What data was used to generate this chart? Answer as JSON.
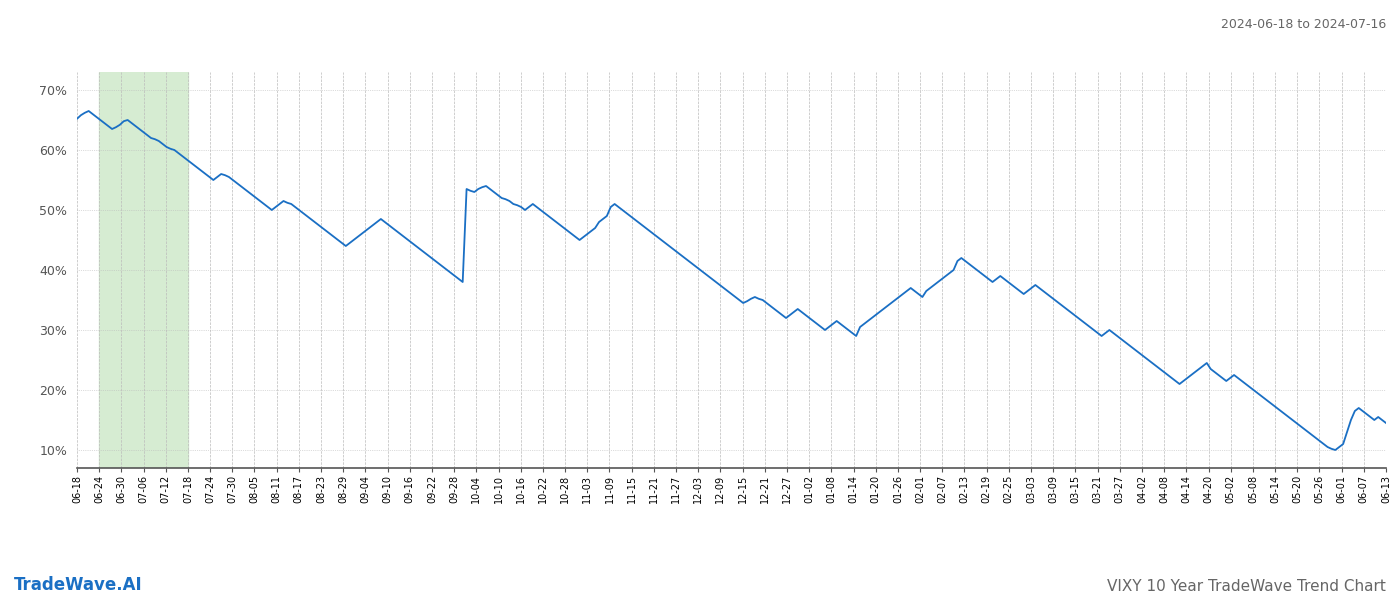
{
  "title_top_right": "2024-06-18 to 2024-07-16",
  "title_bottom_left": "TradeWave.AI",
  "title_bottom_right": "VIXY 10 Year TradeWave Trend Chart",
  "y_ticks": [
    10,
    20,
    30,
    40,
    50,
    60,
    70
  ],
  "y_min": 7,
  "y_max": 73,
  "line_color": "#1a6fc4",
  "line_width": 1.3,
  "background_color": "#ffffff",
  "grid_color": "#bbbbbb",
  "shade_color": "#d6ecd2",
  "x_labels": [
    "06-18",
    "06-24",
    "06-30",
    "07-06",
    "07-12",
    "07-18",
    "07-24",
    "07-30",
    "08-05",
    "08-11",
    "08-17",
    "08-23",
    "08-29",
    "09-04",
    "09-10",
    "09-16",
    "09-22",
    "09-28",
    "10-04",
    "10-10",
    "10-16",
    "10-22",
    "10-28",
    "11-03",
    "11-09",
    "11-15",
    "11-21",
    "11-27",
    "12-03",
    "12-09",
    "12-15",
    "12-21",
    "12-27",
    "01-02",
    "01-08",
    "01-14",
    "01-20",
    "01-26",
    "02-01",
    "02-07",
    "02-13",
    "02-19",
    "02-25",
    "03-03",
    "03-09",
    "03-15",
    "03-21",
    "03-27",
    "04-02",
    "04-08",
    "04-14",
    "04-20",
    "05-02",
    "05-08",
    "05-14",
    "05-20",
    "05-26",
    "06-01",
    "06-07",
    "06-13"
  ],
  "green_shade_label_start": "06-24",
  "green_shade_label_end": "07-18",
  "y_values": [
    65.2,
    65.8,
    66.2,
    66.5,
    66.0,
    65.5,
    65.0,
    64.5,
    64.0,
    63.5,
    63.8,
    64.2,
    64.8,
    65.0,
    64.5,
    64.0,
    63.5,
    63.0,
    62.5,
    62.0,
    61.8,
    61.5,
    61.0,
    60.5,
    60.2,
    60.0,
    59.5,
    59.0,
    58.5,
    58.0,
    57.5,
    57.0,
    56.5,
    56.0,
    55.5,
    55.0,
    55.5,
    56.0,
    55.8,
    55.5,
    55.0,
    54.5,
    54.0,
    53.5,
    53.0,
    52.5,
    52.0,
    51.5,
    51.0,
    50.5,
    50.0,
    50.5,
    51.0,
    51.5,
    51.2,
    51.0,
    50.5,
    50.0,
    49.5,
    49.0,
    48.5,
    48.0,
    47.5,
    47.0,
    46.5,
    46.0,
    45.5,
    45.0,
    44.5,
    44.0,
    44.5,
    45.0,
    45.5,
    46.0,
    46.5,
    47.0,
    47.5,
    48.0,
    48.5,
    48.0,
    47.5,
    47.0,
    46.5,
    46.0,
    45.5,
    45.0,
    44.5,
    44.0,
    43.5,
    43.0,
    42.5,
    42.0,
    41.5,
    41.0,
    40.5,
    40.0,
    39.5,
    39.0,
    38.5,
    38.0,
    53.5,
    53.2,
    53.0,
    53.5,
    53.8,
    54.0,
    53.5,
    53.0,
    52.5,
    52.0,
    51.8,
    51.5,
    51.0,
    50.8,
    50.5,
    50.0,
    50.5,
    51.0,
    50.5,
    50.0,
    49.5,
    49.0,
    48.5,
    48.0,
    47.5,
    47.0,
    46.5,
    46.0,
    45.5,
    45.0,
    45.5,
    46.0,
    46.5,
    47.0,
    48.0,
    48.5,
    49.0,
    50.5,
    51.0,
    50.5,
    50.0,
    49.5,
    49.0,
    48.5,
    48.0,
    47.5,
    47.0,
    46.5,
    46.0,
    45.5,
    45.0,
    44.5,
    44.0,
    43.5,
    43.0,
    42.5,
    42.0,
    41.5,
    41.0,
    40.5,
    40.0,
    39.5,
    39.0,
    38.5,
    38.0,
    37.5,
    37.0,
    36.5,
    36.0,
    35.5,
    35.0,
    34.5,
    34.8,
    35.2,
    35.5,
    35.2,
    35.0,
    34.5,
    34.0,
    33.5,
    33.0,
    32.5,
    32.0,
    32.5,
    33.0,
    33.5,
    33.0,
    32.5,
    32.0,
    31.5,
    31.0,
    30.5,
    30.0,
    30.5,
    31.0,
    31.5,
    31.0,
    30.5,
    30.0,
    29.5,
    29.0,
    30.5,
    31.0,
    31.5,
    32.0,
    32.5,
    33.0,
    33.5,
    34.0,
    34.5,
    35.0,
    35.5,
    36.0,
    36.5,
    37.0,
    36.5,
    36.0,
    35.5,
    36.5,
    37.0,
    37.5,
    38.0,
    38.5,
    39.0,
    39.5,
    40.0,
    41.5,
    42.0,
    41.5,
    41.0,
    40.5,
    40.0,
    39.5,
    39.0,
    38.5,
    38.0,
    38.5,
    39.0,
    38.5,
    38.0,
    37.5,
    37.0,
    36.5,
    36.0,
    36.5,
    37.0,
    37.5,
    37.0,
    36.5,
    36.0,
    35.5,
    35.0,
    34.5,
    34.0,
    33.5,
    33.0,
    32.5,
    32.0,
    31.5,
    31.0,
    30.5,
    30.0,
    29.5,
    29.0,
    29.5,
    30.0,
    29.5,
    29.0,
    28.5,
    28.0,
    27.5,
    27.0,
    26.5,
    26.0,
    25.5,
    25.0,
    24.5,
    24.0,
    23.5,
    23.0,
    22.5,
    22.0,
    21.5,
    21.0,
    21.5,
    22.0,
    22.5,
    23.0,
    23.5,
    24.0,
    24.5,
    23.5,
    23.0,
    22.5,
    22.0,
    21.5,
    22.0,
    22.5,
    22.0,
    21.5,
    21.0,
    20.5,
    20.0,
    19.5,
    19.0,
    18.5,
    18.0,
    17.5,
    17.0,
    16.5,
    16.0,
    15.5,
    15.0,
    14.5,
    14.0,
    13.5,
    13.0,
    12.5,
    12.0,
    11.5,
    11.0,
    10.5,
    10.2,
    10.0,
    10.5,
    11.0,
    13.0,
    15.0,
    16.5,
    17.0,
    16.5,
    16.0,
    15.5,
    15.0,
    15.5,
    15.0,
    14.5
  ]
}
